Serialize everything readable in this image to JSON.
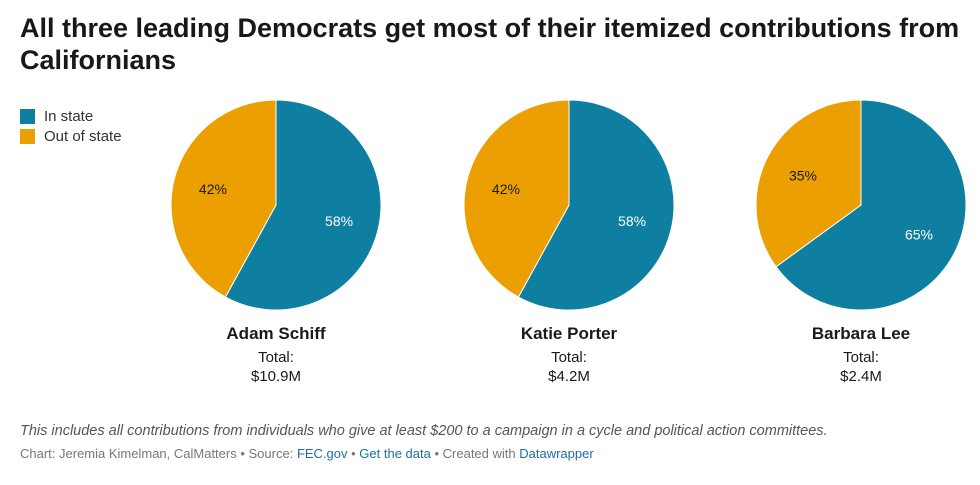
{
  "title": "All three leading Democrats get most of their itemized contributions from Californians",
  "legend": [
    {
      "label": "In state",
      "color": "#0e7fa1"
    },
    {
      "label": "Out of state",
      "color": "#eb9f00"
    }
  ],
  "chart_data": {
    "type": "pie",
    "series_names": [
      "In state",
      "Out of state"
    ],
    "colors": {
      "in_state": "#0e7fa1",
      "out_of_state": "#eb9f00"
    },
    "charts": [
      {
        "name": "Adam Schiff",
        "total_label": "Total:",
        "total": "$10.9M",
        "in_state": 58,
        "out_of_state": 42
      },
      {
        "name": "Katie Porter",
        "total_label": "Total:",
        "total": "$4.2M",
        "in_state": 58,
        "out_of_state": 42
      },
      {
        "name": "Barbara Lee",
        "total_label": "Total:",
        "total": "$2.4M",
        "in_state": 65,
        "out_of_state": 35
      }
    ]
  },
  "note": "This includes all contributions from individuals who give at least $200 to a campaign in a cycle and political action committees.",
  "footer": {
    "chart_prefix": "Chart: Jeremia Kimelman, CalMatters",
    "sep": " • ",
    "source_prefix": "Source: ",
    "source_link": "FEC.gov",
    "get_data": "Get the data",
    "created_prefix": "Created with ",
    "created_link": "Datawrapper"
  }
}
